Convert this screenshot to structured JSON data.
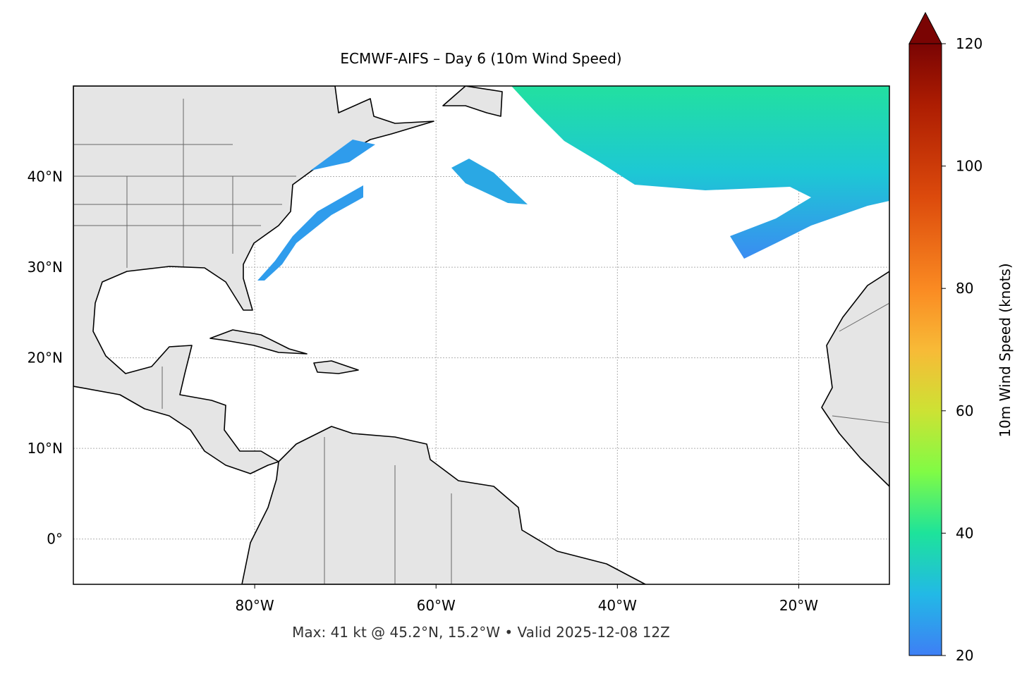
{
  "map": {
    "title": "ECMWF-AIFS – Day 6 (10m Wind Speed)",
    "footer": "Max: 41 kt @ 45.2°N, 15.2°W • Valid 2025-12-08 12Z",
    "xlim": [
      -100,
      -10
    ],
    "ylim": [
      -5,
      50
    ],
    "xticks": [
      {
        "value": -80,
        "label": "80°W"
      },
      {
        "value": -60,
        "label": "60°W"
      },
      {
        "value": -40,
        "label": "40°W"
      },
      {
        "value": -20,
        "label": "20°W"
      }
    ],
    "yticks": [
      {
        "value": 0,
        "label": "0°"
      },
      {
        "value": 10,
        "label": "10°N"
      },
      {
        "value": 20,
        "label": "20°N"
      },
      {
        "value": 30,
        "label": "30°N"
      },
      {
        "value": 40,
        "label": "40°N"
      }
    ],
    "grid": true,
    "colorbar": {
      "label": "10m Wind Speed (knots)",
      "clim": [
        20,
        120
      ],
      "ticks": [
        20,
        40,
        60,
        80,
        100,
        120
      ]
    }
  }
}
